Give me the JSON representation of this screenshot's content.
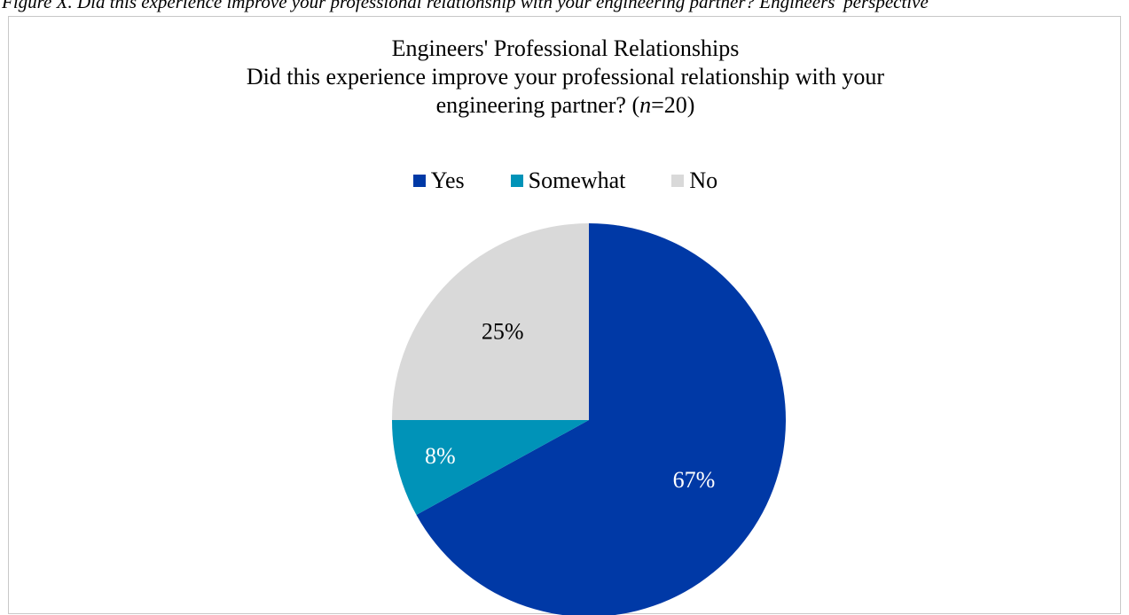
{
  "caption": "Figure X. Did this experience improve your professional relationship with your engineering partner? Engineers' perspective",
  "chart_data": {
    "type": "pie",
    "title": "Engineers' Professional Relationships",
    "subtitle_main": "Did this experience improve your professional relationship with your",
    "subtitle_tail": "engineering partner? (",
    "subtitle_n_italic": "n",
    "subtitle_n_value": "=20)",
    "legend_position": "top",
    "slices": [
      {
        "name": "Yes",
        "value": 67,
        "label": "67%",
        "color": "#0039a6",
        "label_color": "#ffffff"
      },
      {
        "name": "Somewhat",
        "value": 8,
        "label": "8%",
        "color": "#0093b8",
        "label_color": "#ffffff"
      },
      {
        "name": "No",
        "value": 25,
        "label": "25%",
        "color": "#d9d9d9",
        "label_color": "#000000"
      }
    ]
  }
}
